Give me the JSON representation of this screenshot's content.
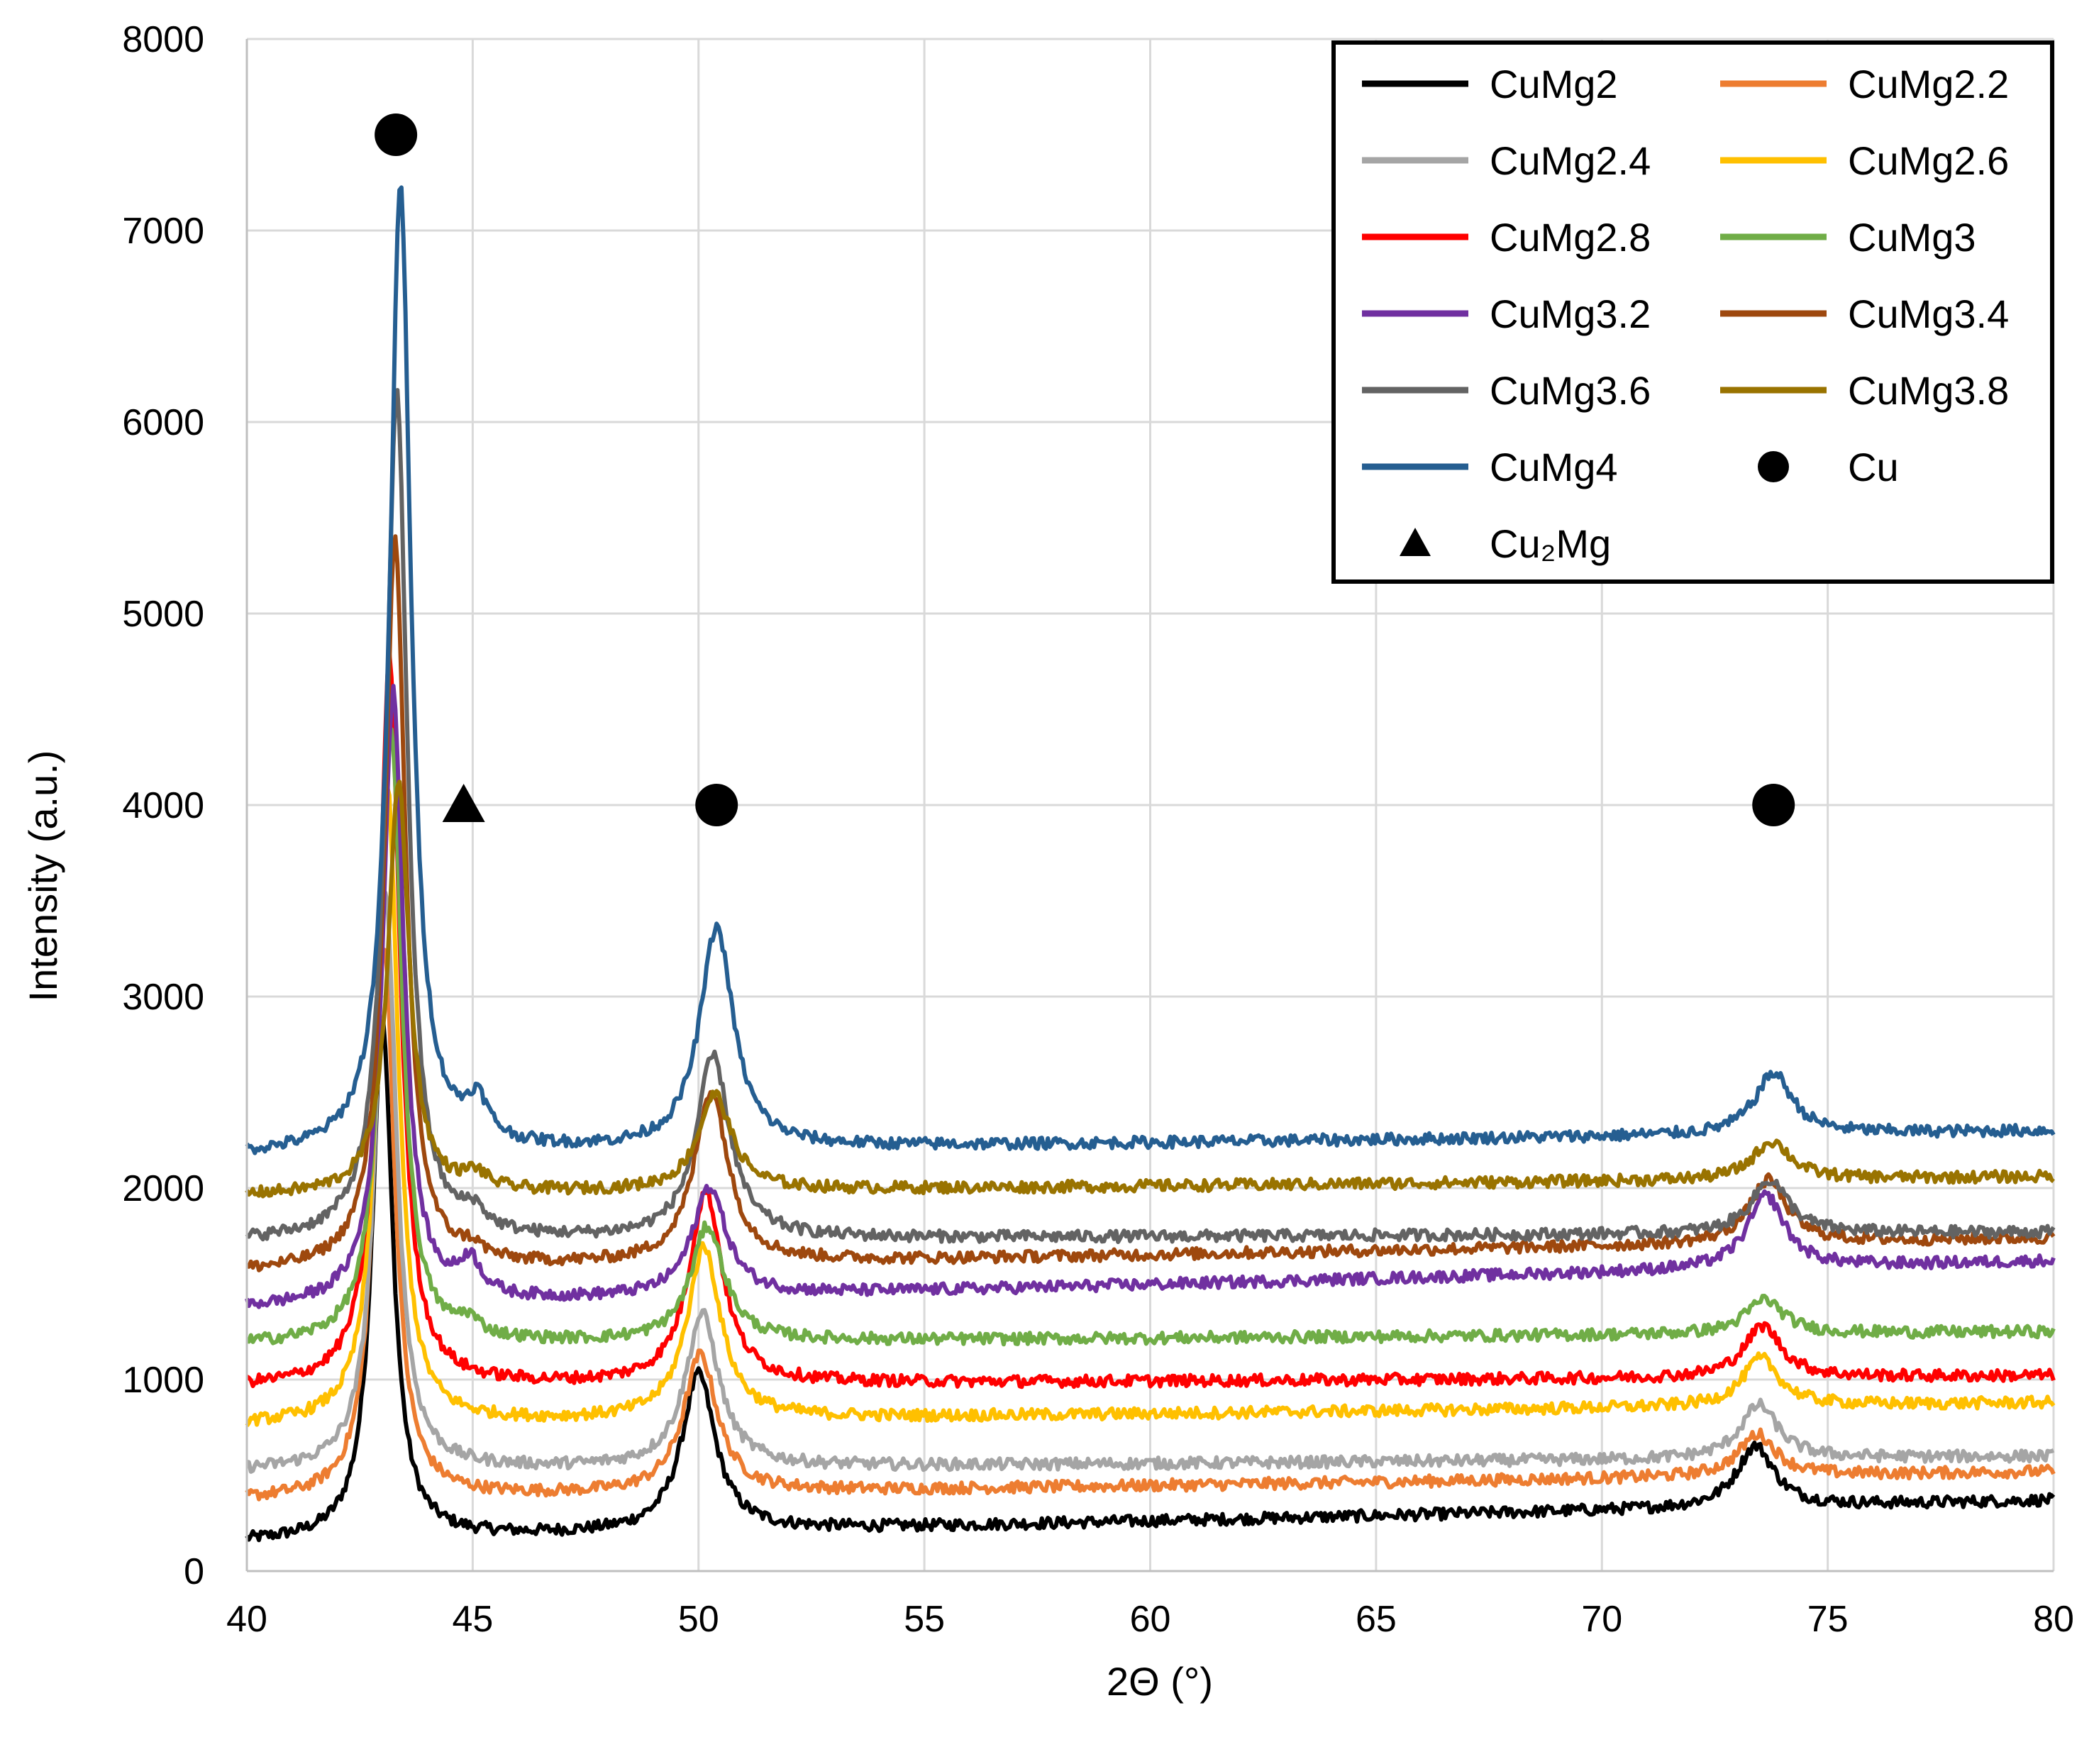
{
  "chart_data": {
    "type": "line",
    "title": "",
    "xlabel": "2Θ (°)",
    "ylabel": "Intensity (a.u.)",
    "xlim": [
      40,
      80
    ],
    "ylim": [
      0,
      8000
    ],
    "xticks": [
      40,
      45,
      50,
      55,
      60,
      65,
      70,
      75,
      80
    ],
    "yticks": [
      0,
      1000,
      2000,
      3000,
      4000,
      5000,
      6000,
      7000,
      8000
    ],
    "grid": true,
    "legend_position": "top-right",
    "peak_centers": [
      43.2,
      44.9,
      50.2,
      73.6
    ],
    "series": [
      {
        "name": "CuMg2",
        "color": "#000000",
        "baseline_start": 150,
        "baseline_end": 370,
        "peaks": [
          2700,
          0,
          820,
          320
        ]
      },
      {
        "name": "CuMg2.2",
        "color": "#ED7D31",
        "baseline_start": 370,
        "baseline_end": 520,
        "peaks": [
          2900,
          0,
          720,
          220
        ]
      },
      {
        "name": "CuMg2.4",
        "color": "#A5A5A5",
        "baseline_start": 520,
        "baseline_end": 600,
        "peaks": [
          3000,
          0,
          800,
          280
        ]
      },
      {
        "name": "CuMg2.6",
        "color": "#FFC000",
        "baseline_start": 760,
        "baseline_end": 880,
        "peaks": [
          3300,
          0,
          900,
          250
        ]
      },
      {
        "name": "CuMg2.8",
        "color": "#FF0000",
        "baseline_start": 960,
        "baseline_end": 1020,
        "peaks": [
          3800,
          0,
          1000,
          270
        ]
      },
      {
        "name": "CuMg3",
        "color": "#70AD47",
        "baseline_start": 1180,
        "baseline_end": 1250,
        "peaks": [
          3200,
          80,
          600,
          180
        ]
      },
      {
        "name": "CuMg3.2",
        "color": "#7030A0",
        "baseline_start": 1370,
        "baseline_end": 1620,
        "peaks": [
          3200,
          180,
          570,
          380
        ]
      },
      {
        "name": "CuMg3.4",
        "color": "#9E480E",
        "baseline_start": 1560,
        "baseline_end": 1740,
        "peaks": [
          3800,
          60,
          900,
          330
        ]
      },
      {
        "name": "CuMg3.6",
        "color": "#636363",
        "baseline_start": 1720,
        "baseline_end": 1770,
        "peaks": [
          4450,
          100,
          950,
          280
        ]
      },
      {
        "name": "CuMg3.8",
        "color": "#997300",
        "baseline_start": 1960,
        "baseline_end": 2060,
        "peaks": [
          2150,
          80,
          500,
          200
        ]
      },
      {
        "name": "CuMg4",
        "color": "#255E91",
        "baseline_start": 2170,
        "baseline_end": 2300,
        "peaks": [
          5050,
          200,
          1150,
          320
        ]
      }
    ],
    "markers": [
      {
        "name": "Cu",
        "symbol": "circle",
        "points": [
          {
            "x": 43.3,
            "y": 7500
          },
          {
            "x": 50.4,
            "y": 4000
          },
          {
            "x": 73.8,
            "y": 4000
          }
        ]
      },
      {
        "name": "Cu₂Mg",
        "symbol": "triangle",
        "points": [
          {
            "x": 44.8,
            "y": 4000
          }
        ]
      }
    ]
  },
  "legend": {
    "items": [
      {
        "label": "CuMg2",
        "kind": "line",
        "color": "#000000"
      },
      {
        "label": "CuMg2.2",
        "kind": "line",
        "color": "#ED7D31"
      },
      {
        "label": "CuMg2.4",
        "kind": "line",
        "color": "#A5A5A5"
      },
      {
        "label": "CuMg2.6",
        "kind": "line",
        "color": "#FFC000"
      },
      {
        "label": "CuMg2.8",
        "kind": "line",
        "color": "#FF0000"
      },
      {
        "label": "CuMg3",
        "kind": "line",
        "color": "#70AD47"
      },
      {
        "label": "CuMg3.2",
        "kind": "line",
        "color": "#7030A0"
      },
      {
        "label": "CuMg3.4",
        "kind": "line",
        "color": "#9E480E"
      },
      {
        "label": "CuMg3.6",
        "kind": "line",
        "color": "#636363"
      },
      {
        "label": "CuMg3.8",
        "kind": "line",
        "color": "#997300"
      },
      {
        "label": "CuMg4",
        "kind": "line",
        "color": "#255E91"
      },
      {
        "label": "Cu",
        "kind": "circle",
        "color": "#000000"
      },
      {
        "label": "Cu₂Mg",
        "kind": "triangle",
        "color": "#000000"
      }
    ]
  }
}
